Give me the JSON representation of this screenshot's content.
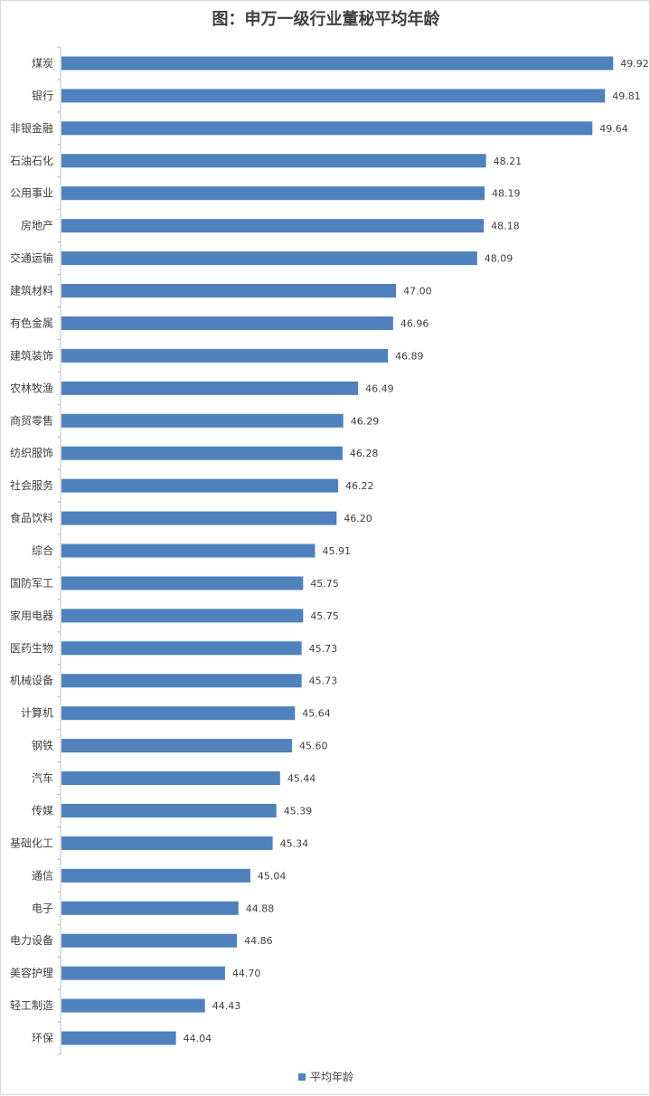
{
  "chart_data": {
    "type": "bar",
    "orientation": "horizontal",
    "title": "图：申万一级行业董秘平均年龄",
    "categories": [
      "煤炭",
      "银行",
      "非银金融",
      "石油石化",
      "公用事业",
      "房地产",
      "交通运输",
      "建筑材料",
      "有色金属",
      "建筑装饰",
      "农林牧渔",
      "商贸零售",
      "纺织服饰",
      "社会服务",
      "食品饮料",
      "综合",
      "国防军工",
      "家用电器",
      "医药生物",
      "机械设备",
      "计算机",
      "钢铁",
      "汽车",
      "传媒",
      "基础化工",
      "通信",
      "电子",
      "电力设备",
      "美容护理",
      "轻工制造",
      "环保"
    ],
    "value_labels": [
      "49.92",
      "49.81",
      "49.64",
      "48.21",
      "48.19",
      "48.18",
      "48.09",
      "47.00",
      "46.96",
      "46.89",
      "46.49",
      "46.29",
      "46.28",
      "46.22",
      "46.20",
      "45.91",
      "45.75",
      "45.75",
      "45.73",
      "45.73",
      "45.64",
      "45.60",
      "45.44",
      "45.39",
      "45.34",
      "45.04",
      "44.88",
      "44.86",
      "44.70",
      "44.43",
      "44.04"
    ],
    "series": [
      {
        "name": "平均年龄",
        "color": "#4f81bd",
        "values": [
          49.92,
          49.81,
          49.64,
          48.21,
          48.19,
          48.18,
          48.09,
          47.0,
          46.96,
          46.89,
          46.49,
          46.29,
          46.28,
          46.22,
          46.2,
          45.91,
          45.75,
          45.75,
          45.73,
          45.73,
          45.64,
          45.6,
          45.44,
          45.39,
          45.34,
          45.04,
          44.88,
          44.86,
          44.7,
          44.43,
          44.04
        ]
      }
    ],
    "xlim": [
      42.5,
      50.5
    ],
    "grid": false,
    "legend_position": "bottom"
  }
}
